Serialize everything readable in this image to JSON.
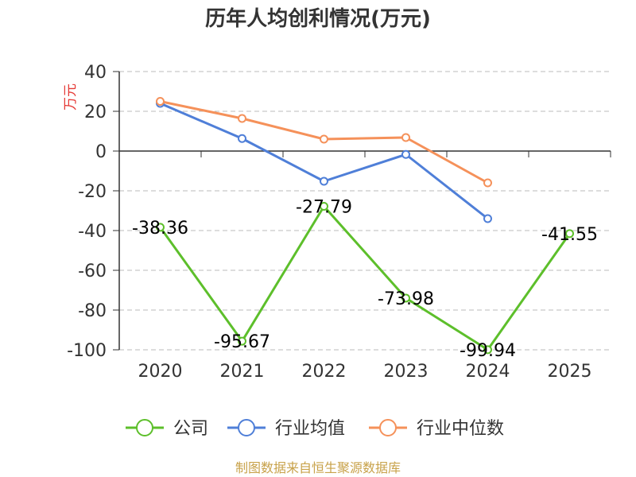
{
  "chart_data": {
    "type": "line",
    "title": "历年人均创利情况(万元)",
    "ylabel": "万元",
    "xlabel": "",
    "categories": [
      "2020",
      "2021",
      "2022",
      "2023",
      "2024",
      "2025"
    ],
    "ylim": [
      -100,
      40
    ],
    "yticks": [
      40,
      20,
      0,
      -20,
      -40,
      -60,
      -80,
      -100
    ],
    "grid": true,
    "legend_position": "bottom",
    "series": [
      {
        "name": "公司",
        "color": "#5dbf2b",
        "values": [
          -38.36,
          -95.67,
          -27.79,
          -73.98,
          -99.94,
          -41.55
        ],
        "labels": [
          "-38.36",
          "-95.67",
          "-27.79",
          "-73.98",
          "-99.94",
          "-41.55"
        ]
      },
      {
        "name": "行业均值",
        "color": "#4f7fd8",
        "values": [
          24,
          6.3,
          -15.2,
          -1.7,
          -34,
          null
        ]
      },
      {
        "name": "行业中位数",
        "color": "#f5915a",
        "values": [
          25,
          16.4,
          6,
          6.8,
          -16,
          null
        ]
      }
    ],
    "source": "制图数据来自恒生聚源数据库"
  }
}
